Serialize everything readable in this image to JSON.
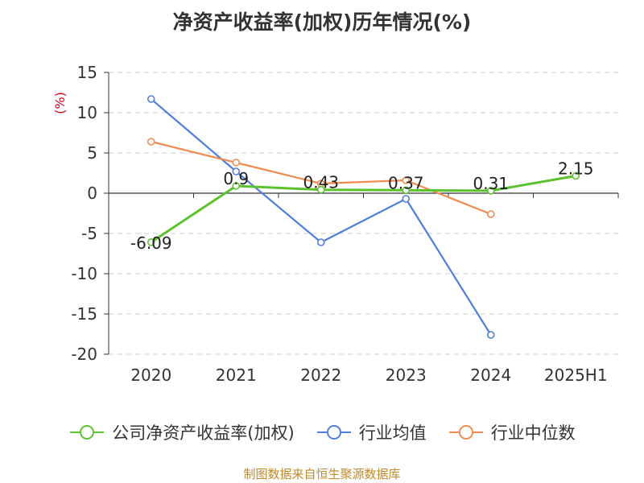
{
  "chart_data": {
    "type": "line",
    "title": "净资产收益率(加权)历年情况(%)",
    "ylabel": "(%)",
    "categories": [
      "2020",
      "2021",
      "2022",
      "2023",
      "2024",
      "2025H1"
    ],
    "ylim": [
      -20,
      15
    ],
    "yticks": [
      15,
      10,
      5,
      0,
      -5,
      -10,
      -15,
      -20
    ],
    "grid": true,
    "legend_position": "bottom",
    "series": [
      {
        "name": "公司净资产收益率(加权)",
        "color": "#5cc230",
        "values": [
          -6.09,
          0.9,
          0.43,
          0.37,
          0.31,
          2.15
        ],
        "labels": [
          "-6.09",
          "0.9",
          "0.43",
          "0.37",
          "0.31",
          "2.15"
        ]
      },
      {
        "name": "行业均值",
        "color": "#4f7fdb",
        "values": [
          11.7,
          2.7,
          -6.1,
          -0.7,
          -17.6,
          null
        ]
      },
      {
        "name": "行业中位数",
        "color": "#f08c50",
        "values": [
          6.4,
          3.8,
          1.2,
          1.6,
          -2.6,
          null
        ]
      }
    ],
    "source": "制图数据来自恒生聚源数据库"
  }
}
